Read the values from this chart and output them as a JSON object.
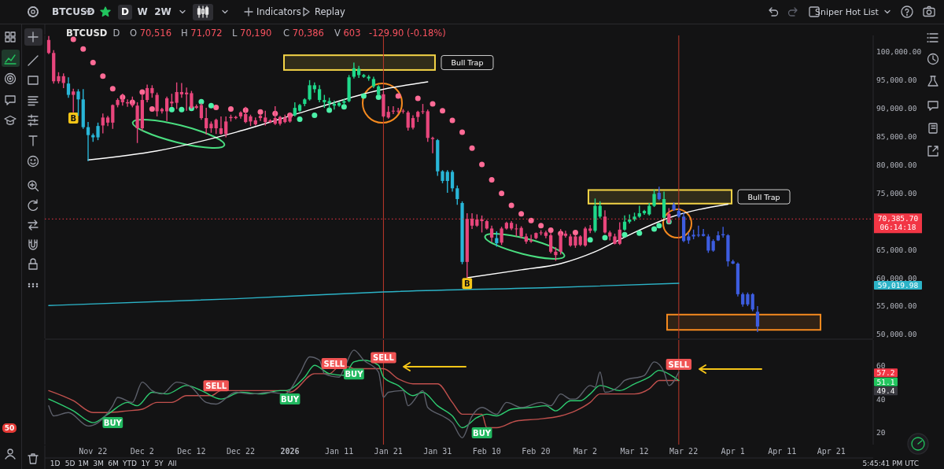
{
  "chart_data": [
    {
      "type": "candlestick",
      "title": "BTCUSD",
      "subtitle": "D",
      "xlim": [
        "2025-11-12T05:00",
        "2026-04-29T12:00"
      ],
      "ylim": [
        49300,
        102800
      ],
      "yticks": [
        {
          "value": 50000,
          "label": "50,000.00"
        },
        {
          "value": 55000,
          "label": "55,000.00"
        },
        {
          "value": 60000,
          "label": "60,000.00"
        },
        {
          "value": 65000,
          "label": "65,000.00"
        },
        {
          "value": 75000,
          "label": "75,000.00"
        },
        {
          "value": 80000,
          "label": "80,000.00"
        },
        {
          "value": 85000,
          "label": "85,000.00"
        },
        {
          "value": 90000,
          "label": "90,000.00"
        },
        {
          "value": 95000,
          "label": "95,000.00"
        },
        {
          "value": 100000,
          "label": "100,000.00"
        }
      ],
      "tick_labels": "y",
      "series": [
        {
          "type": "line",
          "color": "#2cb3c7",
          "x": [
            "2025-11-13",
            "2025-12-21",
            "2026-01-20",
            "2026-02-24",
            "2026-03-21"
          ],
          "values": [
            55100,
            56300,
            57500,
            58300,
            59019.98
          ]
        },
        {
          "type": "line",
          "color": "#ffffff",
          "x": [
            "2025-11-21",
            "2025-12-05",
            "2025-12-21",
            "2026-01-06",
            "2026-01-19",
            "2026-01-29"
          ],
          "values": [
            80800,
            82400,
            85700,
            89900,
            93100,
            94600
          ]
        },
        {
          "type": "line",
          "color": "#ffffff",
          "x": [
            "2026-02-06",
            "2026-02-17",
            "2026-02-25",
            "2026-03-04",
            "2026-03-11",
            "2026-03-19",
            "2026-03-31"
          ],
          "values": [
            60000,
            61400,
            62500,
            64600,
            67600,
            70600,
            73000
          ]
        },
        {
          "type": "scatter",
          "marker": "circle",
          "color": "#ff6b96",
          "x": [
            "2025-11-18",
            "2025-11-20",
            "2025-11-22",
            "2025-11-24",
            "2025-11-26",
            "2025-11-28",
            "2025-11-30",
            "2025-12-02",
            "2025-12-04",
            "2025-12-17",
            "2025-12-20",
            "2025-12-23",
            "2025-12-26",
            "2025-12-29",
            "2026-01-01",
            "2026-01-23",
            "2026-01-27",
            "2026-01-30",
            "2026-02-01",
            "2026-02-03",
            "2026-02-05",
            "2026-02-07",
            "2026-02-09",
            "2026-02-11",
            "2026-02-13",
            "2026-02-15",
            "2026-02-17",
            "2026-02-19",
            "2026-02-21",
            "2026-02-23",
            "2026-02-25",
            "2026-02-28"
          ],
          "values": [
            102100,
            100400,
            98000,
            95600,
            93400,
            91900,
            91000,
            92800,
            89800,
            90100,
            89800,
            89600,
            89300,
            89000,
            88700,
            92100,
            91700,
            90700,
            89500,
            87800,
            85700,
            82900,
            80000,
            77300,
            74900,
            72800,
            71300,
            70100,
            69200,
            68400,
            67800,
            68000
          ]
        },
        {
          "type": "scatter",
          "marker": "circle",
          "color": "#4cf0a8",
          "x": [
            "2025-12-08",
            "2025-12-10",
            "2025-12-12",
            "2025-12-14",
            "2025-12-16",
            "2026-01-03",
            "2026-01-06",
            "2026-01-09",
            "2026-01-12",
            "2026-01-16",
            "2026-01-19",
            "2026-03-03",
            "2026-03-06",
            "2026-03-10",
            "2026-03-13",
            "2026-03-16",
            "2026-03-17",
            "2026-03-19"
          ],
          "values": [
            89700,
            89700,
            89900,
            91100,
            90400,
            88000,
            88700,
            89600,
            90200,
            92100,
            91900,
            66700,
            67100,
            67600,
            67900,
            68600,
            69200,
            69900
          ]
        },
        {
          "type": "scatter",
          "marker": "square",
          "color": "#f5c518",
          "x": [
            "2025-11-18",
            "2026-02-06"
          ],
          "values": [
            88200,
            59000
          ],
          "value_labels": [
            "B",
            "B"
          ]
        },
        {
          "type": "candlestick",
          "color": "#e8467c",
          "x": [
            "2025-11-13",
            "2025-11-14",
            "2025-11-15",
            "2025-11-16",
            "2025-11-18",
            "2025-11-24",
            "2025-11-25",
            "2025-11-26",
            "2025-11-27",
            "2025-11-28",
            "2025-11-29",
            "2025-11-30",
            "2025-12-01",
            "2025-12-02",
            "2025-12-03",
            "2025-12-04",
            "2025-12-05",
            "2025-12-06",
            "2025-12-07",
            "2025-12-08",
            "2025-12-09",
            "2025-12-10",
            "2025-12-11",
            "2025-12-12",
            "2025-12-13",
            "2025-12-14",
            "2025-12-15",
            "2025-12-16",
            "2025-12-17",
            "2025-12-18",
            "2025-12-19",
            "2025-12-20",
            "2025-12-21",
            "2025-12-22",
            "2025-12-23",
            "2025-12-24",
            "2025-12-25",
            "2025-12-26",
            "2025-12-27",
            "2025-12-28",
            "2025-12-29",
            "2025-12-30",
            "2025-12-31",
            "2026-01-01",
            "2026-01-20",
            "2026-01-21",
            "2026-01-22",
            "2026-01-23",
            "2026-01-24",
            "2026-01-25",
            "2026-01-26",
            "2026-01-27",
            "2026-01-28",
            "2026-01-29",
            "2026-01-30",
            "2026-02-06",
            "2026-02-07",
            "2026-02-08",
            "2026-02-09",
            "2026-02-10",
            "2026-02-11",
            "2026-02-13",
            "2026-02-14",
            "2026-02-15",
            "2026-02-16",
            "2026-02-17",
            "2026-02-18",
            "2026-02-19",
            "2026-02-20",
            "2026-02-21",
            "2026-02-22",
            "2026-02-23",
            "2026-02-24",
            "2026-02-25",
            "2026-02-26",
            "2026-02-27",
            "2026-02-28",
            "2026-03-01",
            "2026-03-02",
            "2026-03-03",
            "2026-03-06",
            "2026-03-07",
            "2026-03-08",
            "2026-03-09",
            "2026-03-19"
          ],
          "ohlc": [
            [
              102000,
              102700,
              99500,
              99700
            ],
            [
              99700,
              100200,
              94300,
              94700
            ],
            [
              95600,
              96300,
              94300,
              94700
            ],
            [
              95600,
              96100,
              93500,
              94400
            ],
            [
              92900,
              93400,
              89200,
              92300
            ],
            [
              88300,
              89000,
              85500,
              86900
            ],
            [
              88300,
              88600,
              86800,
              87400
            ],
            [
              90500,
              90600,
              86300,
              87400
            ],
            [
              91400,
              91700,
              90100,
              90500
            ],
            [
              91400,
              92500,
              90400,
              91000
            ],
            [
              91000,
              91500,
              90200,
              90800
            ],
            [
              90800,
              92000,
              90100,
              90400
            ],
            [
              90400,
              91000,
              83800,
              86400
            ],
            [
              91400,
              92500,
              86000,
              86400
            ],
            [
              93500,
              94100,
              91000,
              91400
            ],
            [
              93500,
              94000,
              91800,
              92600
            ],
            [
              92300,
              92700,
              88500,
              89400
            ],
            [
              89800,
              90000,
              89000,
              89400
            ],
            [
              91700,
              92000,
              87700,
              89400
            ],
            [
              91100,
              92500,
              90200,
              90800
            ],
            [
              92800,
              94500,
              89800,
              90900
            ],
            [
              92800,
              94400,
              91800,
              92400
            ],
            [
              92700,
              93600,
              89500,
              92400
            ],
            [
              92600,
              93000,
              89800,
              90000
            ],
            [
              90300,
              90600,
              89800,
              90000
            ],
            [
              90500,
              90800,
              87900,
              88200
            ],
            [
              88200,
              90000,
              85300,
              86400
            ],
            [
              87200,
              87600,
              85600,
              86400
            ],
            [
              87900,
              88100,
              85400,
              86400
            ],
            [
              86400,
              88500,
              85300,
              85400
            ],
            [
              87600,
              88500,
              84800,
              85400
            ],
            [
              88400,
              88800,
              87600,
              88200
            ],
            [
              88400,
              88600,
              88000,
              88200
            ],
            [
              89200,
              89400,
              88100,
              88500
            ],
            [
              88900,
              90200,
              87300,
              87500
            ],
            [
              88500,
              88800,
              86800,
              87600
            ],
            [
              87800,
              88300,
              86900,
              87100
            ],
            [
              88600,
              88900,
              87700,
              88200
            ],
            [
              88300,
              89500,
              86900,
              87500
            ],
            [
              87800,
              88000,
              87300,
              87500
            ],
            [
              88200,
              90300,
              87000,
              87200
            ],
            [
              88400,
              88600,
              86900,
              87200
            ],
            [
              88300,
              88800,
              87300,
              87500
            ],
            [
              88600,
              89200,
              87400,
              87600
            ],
            [
              92400,
              93000,
              88300,
              88500
            ],
            [
              89300,
              90300,
              88100,
              88300
            ],
            [
              89500,
              90300,
              88900,
              89400
            ],
            [
              89500,
              90000,
              89000,
              89400
            ],
            [
              89500,
              89800,
              89000,
              89400
            ],
            [
              89200,
              89500,
              86000,
              86500
            ],
            [
              88200,
              88700,
              86200,
              86500
            ],
            [
              89300,
              89500,
              87500,
              88400
            ],
            [
              89400,
              90700,
              88900,
              89300
            ],
            [
              89400,
              89700,
              84000,
              84700
            ],
            [
              84700,
              84900,
              82000,
              84500
            ],
            [
              70400,
              71400,
              60000,
              62800
            ],
            [
              70400,
              71400,
              68600,
              69200
            ],
            [
              70300,
              71200,
              69000,
              69200
            ],
            [
              70300,
              71000,
              68000,
              70000
            ],
            [
              70000,
              70200,
              68500,
              68700
            ],
            [
              68700,
              69200,
              66300,
              67100
            ],
            [
              68700,
              69000,
              65800,
              66200
            ],
            [
              69700,
              69900,
              68500,
              68700
            ],
            [
              69700,
              70000,
              68400,
              68700
            ],
            [
              68700,
              69500,
              67300,
              68600
            ],
            [
              68800,
              69100,
              67000,
              67300
            ],
            [
              67300,
              67800,
              66000,
              66400
            ],
            [
              66600,
              67600,
              66200,
              66400
            ],
            [
              67900,
              68000,
              66800,
              67000
            ],
            [
              68000,
              68400,
              67500,
              67900
            ],
            [
              68000,
              68300,
              67000,
              67400
            ],
            [
              67500,
              67900,
              64300,
              64600
            ],
            [
              64600,
              65400,
              63000,
              64000
            ],
            [
              67800,
              68600,
              64100,
              64600
            ],
            [
              67800,
              68300,
              67100,
              67400
            ],
            [
              67300,
              67700,
              65500,
              65700
            ],
            [
              67300,
              67600,
              65300,
              65700
            ],
            [
              67300,
              67500,
              65600,
              65800
            ],
            [
              68700,
              69000,
              65500,
              65700
            ],
            [
              68700,
              69300,
              67900,
              68300
            ],
            [
              70800,
              71900,
              67800,
              68000
            ],
            [
              68000,
              68300,
              66600,
              67300
            ],
            [
              67300,
              67800,
              65900,
              66000
            ],
            [
              68500,
              69800,
              65800,
              66000
            ],
            [
              71300,
              72300,
              69500,
              69700
            ]
          ]
        },
        {
          "type": "candlestick",
          "color": "#29b6d8",
          "x": [
            "2025-11-17",
            "2025-11-19",
            "2025-11-20",
            "2025-11-21",
            "2025-11-22",
            "2025-11-23",
            "2026-01-31",
            "2026-02-01",
            "2026-02-02",
            "2026-02-03",
            "2026-02-04",
            "2026-02-05",
            "2026-02-12"
          ],
          "ohlc": [
            [
              94300,
              95400,
              91800,
              92300
            ],
            [
              92900,
              93300,
              88600,
              91500
            ],
            [
              91500,
              93300,
              86300,
              86600
            ],
            [
              86600,
              87500,
              80600,
              85200
            ],
            [
              85200,
              85500,
              84000,
              84800
            ],
            [
              86800,
              87400,
              84300,
              84800
            ],
            [
              84300,
              84500,
              78000,
              78800
            ],
            [
              78800,
              79000,
              76700,
              77100
            ],
            [
              78700,
              79000,
              75000,
              77100
            ],
            [
              78700,
              79000,
              75200,
              75800
            ],
            [
              75800,
              76300,
              72900,
              73900
            ],
            [
              73200,
              73500,
              62400,
              62800
            ],
            [
              67000,
              68200,
              65500,
              66100
            ]
          ]
        },
        {
          "type": "candlestick",
          "color": "#1fd88a",
          "x": [
            "2026-01-02",
            "2026-01-03",
            "2026-01-04",
            "2026-01-05",
            "2026-01-06",
            "2026-01-07",
            "2026-01-08",
            "2026-01-09",
            "2026-01-10",
            "2026-01-11",
            "2026-01-12",
            "2026-01-13",
            "2026-01-14",
            "2026-01-15",
            "2026-01-16",
            "2026-01-17",
            "2026-01-18",
            "2026-01-19",
            "2026-03-04",
            "2026-03-05",
            "2026-03-10",
            "2026-03-11",
            "2026-03-12",
            "2026-03-13",
            "2026-03-14",
            "2026-03-15",
            "2026-03-16",
            "2026-03-18"
          ],
          "ohlc": [
            [
              88700,
              91000,
              88500,
              90000
            ],
            [
              89500,
              90700,
              89300,
              90500
            ],
            [
              90700,
              91700,
              90300,
              91500
            ],
            [
              91500,
              94900,
              91300,
              94000
            ],
            [
              93300,
              94500,
              92700,
              94000
            ],
            [
              91400,
              94000,
              91000,
              93300
            ],
            [
              91000,
              92300,
              90000,
              91400
            ],
            [
              90800,
              91800,
              89900,
              91200
            ],
            [
              90400,
              91300,
              89700,
              90700
            ],
            [
              90400,
              91100,
              90200,
              90900
            ],
            [
              90900,
              91600,
              90500,
              91200
            ],
            [
              91200,
              95800,
              91000,
              95400
            ],
            [
              95500,
              98000,
              95200,
              97000
            ],
            [
              95800,
              97400,
              95300,
              96900
            ],
            [
              95500,
              96000,
              95300,
              95800
            ],
            [
              95200,
              95800,
              94800,
              95500
            ],
            [
              93800,
              95500,
              93500,
              95100
            ],
            [
              92400,
              94000,
              92200,
              93800
            ],
            [
              68300,
              74000,
              68000,
              72700
            ],
            [
              70800,
              73500,
              70500,
              72700
            ],
            [
              68500,
              71000,
              68300,
              69900
            ],
            [
              69900,
              71200,
              69600,
              70300
            ],
            [
              70300,
              71500,
              70000,
              70800
            ],
            [
              70800,
              72700,
              70600,
              71400
            ],
            [
              71400,
              72000,
              71100,
              71800
            ],
            [
              71200,
              73200,
              71000,
              72700
            ],
            [
              72700,
              75600,
              72500,
              74800
            ],
            [
              70600,
              75200,
              70400,
              73900
            ]
          ]
        },
        {
          "type": "candlestick",
          "color": "#3d5de0",
          "x": [
            "2026-03-17",
            "2026-03-20",
            "2026-03-21",
            "2026-03-22",
            "2026-03-23",
            "2026-03-24",
            "2026-03-25",
            "2026-03-26",
            "2026-03-27",
            "2026-03-28",
            "2026-03-29",
            "2026-03-30",
            "2026-03-31",
            "2026-04-01",
            "2026-04-02",
            "2026-04-03",
            "2026-04-04",
            "2026-04-05",
            "2026-04-06"
          ],
          "ohlc": [
            [
              75000,
              76100,
              73700,
              73900
            ],
            [
              72900,
              73300,
              71800,
              72000
            ],
            [
              71800,
              72300,
              70600,
              70800
            ],
            [
              70800,
              71500,
              66300,
              66500
            ],
            [
              67300,
              68000,
              66000,
              66600
            ],
            [
              67600,
              68500,
              66800,
              67300
            ],
            [
              67600,
              69200,
              67200,
              67500
            ],
            [
              67700,
              68600,
              67300,
              67400
            ],
            [
              67300,
              67700,
              64400,
              64800
            ],
            [
              66500,
              66800,
              64600,
              64800
            ],
            [
              67500,
              68200,
              66500,
              66600
            ],
            [
              67700,
              69000,
              67100,
              67500
            ],
            [
              67500,
              67700,
              62000,
              62900
            ],
            [
              62900,
              63200,
              62400,
              62500
            ],
            [
              62500,
              62700,
              56700,
              57100
            ],
            [
              57100,
              57400,
              54900,
              55300
            ],
            [
              57100,
              57400,
              55000,
              55300
            ],
            [
              57100,
              57300,
              54100,
              54400
            ],
            [
              54000,
              55000,
              50400,
              51400
            ]
          ]
        }
      ],
      "bands": [
        {
          "axis": "y",
          "from": 96700,
          "to": 99300,
          "color": "#f5d547",
          "label": "Bull Trap"
        },
        {
          "axis": "y",
          "from": 73100,
          "to": 75500,
          "color": "#f5d547",
          "label": "Bull Trap"
        },
        {
          "axis": "y",
          "from": 50800,
          "to": 53500,
          "color": "#f58a1f"
        }
      ],
      "ref_lines": [
        {
          "axis": "y",
          "value": 70385.7,
          "label": "70,385.70\n06:14:18",
          "color": "#f23645",
          "line_style": "dotted"
        },
        {
          "axis": "x",
          "value": "2026-01-20",
          "color": "#c0392b"
        },
        {
          "axis": "x",
          "value": "2026-03-21",
          "color": "#c0392b"
        }
      ],
      "annotations": [
        "O 70,516",
        "H 71,072",
        "L 70,190",
        "C 70,386",
        "V 603",
        "-129.90 (-0.18%)",
        "59,019.98"
      ]
    },
    {
      "type": "line",
      "xlim": [
        "2025-11-12T05:00",
        "2026-04-29T12:00"
      ],
      "xticks": [
        {
          "value": "2025-11-22",
          "label": "Nov 22"
        },
        {
          "value": "2025-12-02",
          "label": "Dec 2"
        },
        {
          "value": "2025-12-12",
          "label": "Dec 12"
        },
        {
          "value": "2025-12-22",
          "label": "Dec 22"
        },
        {
          "value": "2026-01-01",
          "label": "2026"
        },
        {
          "value": "2026-01-11",
          "label": "Jan 11"
        },
        {
          "value": "2026-01-21",
          "label": "Jan 21"
        },
        {
          "value": "2026-01-31",
          "label": "Jan 31"
        },
        {
          "value": "2026-02-10",
          "label": "Feb 10"
        },
        {
          "value": "2026-02-20",
          "label": "Feb 20"
        },
        {
          "value": "2026-03-02",
          "label": "Mar 2"
        },
        {
          "value": "2026-03-12",
          "label": "Mar 12"
        },
        {
          "value": "2026-03-22",
          "label": "Mar 22"
        },
        {
          "value": "2026-04-01",
          "label": "Apr 1"
        },
        {
          "value": "2026-04-11",
          "label": "Apr 11"
        },
        {
          "value": "2026-04-21",
          "label": "Apr 21"
        }
      ],
      "ylim": [
        13,
        75
      ],
      "yticks": [
        20,
        40,
        60
      ],
      "series": [
        {
          "color": "#c0504d",
          "x": [
            "2025-11-13",
            "2025-11-18",
            "2025-11-22",
            "2025-11-25",
            "2025-11-29",
            "2025-12-02",
            "2025-12-05",
            "2025-12-08",
            "2025-12-11",
            "2025-12-16",
            "2025-12-18",
            "2025-12-31",
            "2026-01-01",
            "2026-01-06",
            "2026-01-09",
            "2026-01-11",
            "2026-01-13",
            "2026-01-14",
            "2026-01-20",
            "2026-01-23",
            "2026-01-26",
            "2026-01-31",
            "2026-02-03",
            "2026-02-05",
            "2026-02-09",
            "2026-02-10",
            "2026-02-12",
            "2026-02-16",
            "2026-02-20",
            "2026-02-25",
            "2026-02-28",
            "2026-03-03",
            "2026-03-05",
            "2026-03-12",
            "2026-03-15",
            "2026-03-17",
            "2026-03-21"
          ],
          "values": [
            45,
            39,
            32,
            32,
            33,
            34,
            38,
            38,
            42,
            42,
            45,
            45,
            44,
            55,
            55,
            59,
            59,
            58,
            58,
            52,
            49,
            49,
            38,
            31,
            31,
            23,
            23,
            27,
            28,
            30,
            33,
            38,
            43,
            43,
            46,
            51,
            51
          ]
        },
        {
          "color": "#2ecc71",
          "x": [
            "2025-11-13",
            "2025-11-18",
            "2025-11-22",
            "2025-11-25",
            "2025-11-29",
            "2025-12-01",
            "2025-12-04",
            "2025-12-07",
            "2025-12-11",
            "2025-12-14",
            "2025-12-18",
            "2025-12-22",
            "2025-12-26",
            "2025-12-30",
            "2025-12-31",
            "2026-01-04",
            "2026-01-06",
            "2026-01-09",
            "2026-01-12",
            "2026-01-14",
            "2026-01-16",
            "2026-01-19",
            "2026-01-20",
            "2026-01-23",
            "2026-01-26",
            "2026-01-28",
            "2026-01-31",
            "2026-02-03",
            "2026-02-05",
            "2026-02-08",
            "2026-02-10",
            "2026-02-12",
            "2026-02-15",
            "2026-02-19",
            "2026-02-22",
            "2026-02-24",
            "2026-02-27",
            "2026-03-01",
            "2026-03-03",
            "2026-03-05",
            "2026-03-09",
            "2026-03-12",
            "2026-03-15",
            "2026-03-17",
            "2026-03-20",
            "2026-03-21"
          ],
          "values": [
            40,
            33,
            26,
            31,
            38,
            36,
            44,
            43,
            48,
            45,
            40,
            44,
            43,
            45,
            45,
            53,
            60,
            55,
            54,
            62,
            63,
            60,
            53,
            48,
            42,
            44,
            36,
            30,
            23,
            29,
            31,
            30,
            34,
            35,
            36,
            33,
            39,
            39,
            43,
            48,
            45,
            49,
            53,
            57,
            53,
            51
          ]
        },
        {
          "color": "#5d606b",
          "x": [
            "2025-11-13",
            "2025-11-14",
            "2025-11-17",
            "2025-11-21",
            "2025-11-23",
            "2025-11-26",
            "2025-11-27",
            "2025-11-30",
            "2025-12-02",
            "2025-12-04",
            "2025-12-06",
            "2025-12-09",
            "2025-12-12",
            "2025-12-15",
            "2025-12-17",
            "2025-12-21",
            "2025-12-24",
            "2025-12-28",
            "2025-12-31",
            "2026-01-03",
            "2026-01-05",
            "2026-01-07",
            "2026-01-08",
            "2026-01-11",
            "2026-01-12",
            "2026-01-14",
            "2026-01-16",
            "2026-01-19",
            "2026-01-20",
            "2026-01-21",
            "2026-01-24",
            "2026-01-25",
            "2026-01-28",
            "2026-01-29",
            "2026-02-01",
            "2026-02-03",
            "2026-02-05",
            "2026-02-07",
            "2026-02-09",
            "2026-02-12",
            "2026-02-14",
            "2026-02-17",
            "2026-02-21",
            "2026-02-23",
            "2026-02-25",
            "2026-02-27",
            "2026-02-28",
            "2026-03-03",
            "2026-03-04",
            "2026-03-05",
            "2026-03-06",
            "2026-03-09",
            "2026-03-10",
            "2026-03-14",
            "2026-03-16",
            "2026-03-18",
            "2026-03-19",
            "2026-03-21"
          ],
          "values": [
            36,
            30,
            32,
            24,
            26,
            36,
            41,
            38,
            50,
            45,
            43,
            50,
            47,
            38,
            37,
            44,
            43,
            44,
            43,
            55,
            65,
            63,
            55,
            53,
            58,
            69,
            63,
            56,
            41,
            44,
            45,
            36,
            45,
            35,
            30,
            26,
            17,
            30,
            35,
            31,
            38,
            35,
            38,
            36,
            43,
            40,
            40,
            48,
            47,
            56,
            44,
            48,
            51,
            54,
            62,
            56,
            48,
            56
          ]
        },
        {
          "type": "scatter",
          "marker": "square",
          "color": "#22b860",
          "x": [
            "2025-11-26",
            "2026-01-01",
            "2026-01-14",
            "2026-02-09"
          ],
          "values": [
            26,
            40,
            54.8,
            20
          ],
          "value_labels": [
            "BUY",
            "BUY",
            "BUY",
            "BUY"
          ]
        },
        {
          "type": "scatter",
          "marker": "square",
          "color": "#f05454",
          "x": [
            "2025-12-17",
            "2026-01-10",
            "2026-01-20",
            "2026-03-21"
          ],
          "values": [
            47.9,
            61,
            64.5,
            60.5
          ],
          "value_labels": [
            "SELL",
            "SELL",
            "SELL",
            "SELL"
          ]
        }
      ],
      "ref_lines": [
        {
          "axis": "x",
          "value": "2026-01-20",
          "color": "#c0392b"
        },
        {
          "axis": "x",
          "value": "2026-03-21",
          "color": "#c0392b"
        }
      ],
      "annotations": [
        "57.2",
        "51.1",
        "49.4"
      ]
    },
    {
      "type": "other",
      "annotations": [
        "BTCUSD",
        "D",
        "W",
        "2W",
        "Indicators",
        "Replay",
        "Sniper Hot List",
        "1D",
        "5D",
        "1M",
        "3M",
        "6M",
        "YTD",
        "1Y",
        "5Y",
        "All",
        "5:45:41 PM UTC",
        "50"
      ]
    }
  ]
}
